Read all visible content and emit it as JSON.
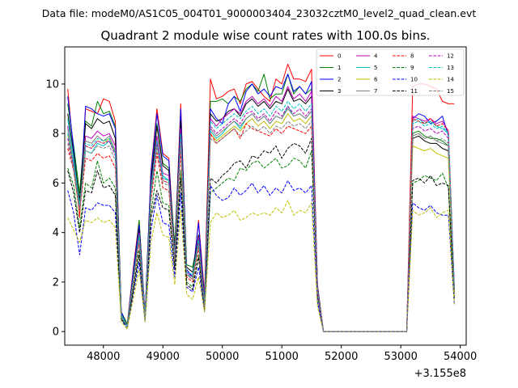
{
  "suptitle": "Data file: modeM0/AS1C05_004T01_9000003404_23032cztM0_level2_quad_clean.evt",
  "chart_data": {
    "type": "line",
    "title": "Quadrant 2 module wise count rates with 100.0s bins.",
    "xlabel": "",
    "ylabel": "",
    "x_offset_label": "+3.155e8",
    "xlim": [
      47350,
      54100
    ],
    "ylim": [
      -0.55,
      11.5
    ],
    "x_ticks": [
      48000,
      49000,
      50000,
      51000,
      52000,
      53000,
      54000
    ],
    "y_ticks": [
      0,
      2,
      4,
      6,
      8,
      10
    ],
    "legend_position": "top-right",
    "grid": false,
    "x": [
      47400,
      47500,
      47600,
      47700,
      47800,
      47900,
      48000,
      48100,
      48200,
      48300,
      48400,
      48500,
      48600,
      48700,
      48800,
      48900,
      49000,
      49100,
      49200,
      49300,
      49400,
      49500,
      49600,
      49700,
      49800,
      49900,
      50000,
      50100,
      50200,
      50300,
      50400,
      50500,
      50600,
      50700,
      50800,
      50900,
      51000,
      51100,
      51200,
      51300,
      51400,
      51500,
      51600,
      51700,
      51800,
      51900,
      52000,
      52100,
      52200,
      52300,
      52400,
      52500,
      52600,
      52700,
      52800,
      52900,
      53000,
      53100,
      53200,
      53300,
      53400,
      53500,
      53600,
      53700,
      53800,
      53900
    ],
    "series": [
      {
        "name": "0",
        "color": "#ff0000",
        "dash": "solid",
        "values": [
          9.8,
          7.2,
          4.6,
          9.0,
          8.9,
          8.8,
          9.4,
          9.3,
          8.5,
          0.8,
          0.3,
          2.5,
          4.5,
          0.7,
          6.5,
          9.0,
          7.2,
          7.0,
          3.2,
          9.2,
          2.5,
          2.2,
          4.5,
          1.5,
          10.2,
          9.4,
          9.5,
          9.7,
          9.8,
          9.2,
          10.0,
          10.1,
          9.8,
          9.5,
          9.3,
          10.2,
          10.0,
          10.8,
          10.2,
          10.2,
          10.1,
          10.6,
          1.9,
          0.0,
          0.0,
          0.0,
          0.0,
          0.0,
          0.0,
          0.0,
          0.0,
          0.0,
          0.0,
          0.0,
          0.0,
          0.0,
          0.0,
          0.0,
          9.9,
          10.0,
          10.0,
          9.9,
          9.8,
          9.3,
          9.2,
          9.2
        ]
      },
      {
        "name": "1",
        "color": "#008000",
        "dash": "solid",
        "values": [
          9.2,
          7.5,
          5.6,
          8.5,
          8.3,
          9.3,
          8.8,
          8.9,
          8.3,
          0.8,
          0.3,
          2.2,
          4.5,
          0.6,
          6.2,
          8.4,
          6.8,
          6.6,
          3.5,
          8.6,
          2.7,
          2.6,
          3.8,
          1.2,
          9.3,
          9.3,
          9.4,
          9.2,
          9.5,
          9.3,
          9.8,
          10.0,
          9.7,
          10.4,
          9.4,
          9.6,
          9.6,
          10.4,
          9.6,
          9.9,
          9.6,
          9.8,
          1.8,
          0.0,
          0.0,
          0.0,
          0.0,
          0.0,
          0.0,
          0.0,
          0.0,
          0.0,
          0.0,
          0.0,
          0.0,
          0.0,
          0.0,
          0.0,
          8.0,
          8.1,
          7.9,
          7.8,
          7.8,
          7.7,
          7.5,
          1.8
        ]
      },
      {
        "name": "2",
        "color": "#0000ff",
        "dash": "solid",
        "values": [
          9.5,
          7.4,
          5.0,
          9.1,
          9.0,
          8.8,
          8.7,
          8.8,
          8.2,
          0.8,
          0.2,
          2.4,
          4.3,
          0.7,
          6.4,
          8.8,
          7.1,
          6.9,
          3.0,
          9.0,
          2.5,
          2.2,
          4.4,
          1.3,
          9.0,
          8.6,
          8.4,
          9.2,
          9.5,
          8.9,
          9.7,
          10.0,
          9.6,
          9.8,
          9.5,
          9.9,
          9.8,
          10.4,
          9.7,
          9.9,
          9.6,
          10.1,
          1.8,
          0.0,
          0.0,
          0.0,
          0.0,
          0.0,
          0.0,
          0.0,
          0.0,
          0.0,
          0.0,
          0.0,
          0.0,
          0.0,
          0.0,
          0.0,
          8.6,
          8.8,
          8.7,
          8.4,
          8.5,
          8.7,
          7.9,
          1.8
        ]
      },
      {
        "name": "3",
        "color": "#000000",
        "dash": "solid",
        "values": [
          8.8,
          7.2,
          5.3,
          8.4,
          8.2,
          8.6,
          8.4,
          8.5,
          7.8,
          0.7,
          0.2,
          2.2,
          4.1,
          0.6,
          6.0,
          8.3,
          6.7,
          6.5,
          3.3,
          8.5,
          2.6,
          2.4,
          3.9,
          1.2,
          8.8,
          8.5,
          8.6,
          8.9,
          9.0,
          8.7,
          9.2,
          9.4,
          9.1,
          9.3,
          9.0,
          9.3,
          9.2,
          9.8,
          9.3,
          9.4,
          9.2,
          9.5,
          1.7,
          0.0,
          0.0,
          0.0,
          0.0,
          0.0,
          0.0,
          0.0,
          0.0,
          0.0,
          0.0,
          0.0,
          0.0,
          0.0,
          0.0,
          0.0,
          7.8,
          7.9,
          7.7,
          7.6,
          7.6,
          7.4,
          7.3,
          1.7
        ]
      },
      {
        "name": "4",
        "color": "#bf00bf",
        "dash": "solid",
        "values": [
          8.3,
          6.7,
          4.8,
          7.9,
          7.8,
          8.1,
          7.9,
          8.0,
          7.5,
          0.7,
          0.2,
          2.1,
          4.0,
          0.6,
          5.8,
          7.9,
          6.4,
          6.3,
          3.1,
          8.2,
          2.4,
          2.2,
          3.8,
          1.1,
          8.6,
          8.3,
          8.6,
          8.8,
          9.0,
          8.8,
          9.3,
          9.5,
          9.2,
          9.4,
          9.1,
          9.5,
          9.3,
          9.9,
          9.4,
          9.6,
          9.3,
          9.7,
          1.7,
          0.0,
          0.0,
          0.0,
          0.0,
          0.0,
          0.0,
          0.0,
          0.0,
          0.0,
          0.0,
          0.0,
          0.0,
          0.0,
          0.0,
          0.0,
          8.7,
          8.6,
          8.5,
          8.6,
          8.4,
          8.5,
          8.1,
          1.8
        ]
      },
      {
        "name": "5",
        "color": "#00bfbf",
        "dash": "solid",
        "values": [
          8.6,
          7.0,
          5.1,
          7.3,
          7.2,
          7.6,
          7.5,
          7.7,
          7.2,
          0.7,
          0.2,
          2.1,
          3.9,
          0.6,
          5.8,
          7.7,
          6.3,
          6.1,
          3.1,
          8.0,
          2.4,
          2.3,
          3.7,
          1.1,
          8.1,
          7.8,
          8.0,
          8.3,
          8.5,
          8.2,
          8.6,
          8.8,
          8.5,
          8.7,
          8.4,
          8.7,
          8.6,
          9.1,
          8.7,
          8.8,
          8.6,
          8.9,
          1.6,
          0.0,
          0.0,
          0.0,
          0.0,
          0.0,
          0.0,
          0.0,
          0.0,
          0.0,
          0.0,
          0.0,
          0.0,
          0.0,
          0.0,
          0.0,
          8.5,
          8.6,
          8.4,
          8.5,
          8.3,
          8.2,
          8.0,
          1.7
        ]
      },
      {
        "name": "6",
        "color": "#bfbf00",
        "dash": "solid",
        "values": [
          8.0,
          6.5,
          4.8,
          7.5,
          7.4,
          7.7,
          7.6,
          7.8,
          7.2,
          0.6,
          0.2,
          2.0,
          3.8,
          0.6,
          5.6,
          7.6,
          6.1,
          6.0,
          3.0,
          7.8,
          2.3,
          2.1,
          3.6,
          1.1,
          8.0,
          7.7,
          7.9,
          8.1,
          8.3,
          8.1,
          8.4,
          8.6,
          8.3,
          8.5,
          8.2,
          8.5,
          8.4,
          8.8,
          8.5,
          8.6,
          8.4,
          8.7,
          1.6,
          0.0,
          0.0,
          0.0,
          0.0,
          0.0,
          0.0,
          0.0,
          0.0,
          0.0,
          0.0,
          0.0,
          0.0,
          0.0,
          0.0,
          0.0,
          7.5,
          7.4,
          7.3,
          7.4,
          7.2,
          7.1,
          7.0,
          1.6
        ]
      },
      {
        "name": "7",
        "color": "#808080",
        "dash": "solid",
        "values": [
          8.2,
          6.8,
          5.0,
          7.7,
          7.6,
          7.9,
          7.7,
          7.9,
          7.3,
          0.6,
          0.2,
          2.1,
          3.9,
          0.6,
          5.7,
          7.7,
          6.2,
          6.1,
          3.0,
          7.9,
          2.3,
          2.2,
          3.7,
          1.1,
          8.2,
          7.9,
          8.1,
          8.3,
          8.5,
          8.3,
          8.6,
          8.8,
          8.5,
          8.7,
          8.4,
          8.7,
          8.6,
          9.0,
          8.7,
          8.8,
          8.6,
          8.9,
          1.6,
          0.0,
          0.0,
          0.0,
          0.0,
          0.0,
          0.0,
          0.0,
          0.0,
          0.0,
          0.0,
          0.0,
          0.0,
          0.0,
          0.0,
          0.0,
          7.9,
          8.0,
          7.8,
          7.9,
          7.7,
          7.6,
          7.5,
          1.7
        ]
      },
      {
        "name": "8",
        "color": "#ff0000",
        "dash": "dashed",
        "values": [
          7.4,
          6.5,
          4.8,
          7.0,
          6.9,
          7.2,
          7.0,
          7.1,
          6.6,
          0.6,
          0.2,
          1.9,
          3.6,
          0.5,
          5.3,
          7.2,
          5.8,
          5.7,
          2.8,
          7.3,
          2.2,
          2.0,
          3.4,
          1.0,
          8.0,
          7.6,
          7.8,
          8.0,
          8.2,
          7.8,
          8.4,
          8.2,
          8.1,
          8.0,
          7.9,
          8.2,
          8.0,
          8.3,
          8.2,
          8.1,
          8.0,
          8.3,
          1.5,
          0.0,
          0.0,
          0.0,
          0.0,
          0.0,
          0.0,
          0.0,
          0.0,
          0.0,
          0.0,
          0.0,
          0.0,
          0.0,
          0.0,
          0.0,
          8.6,
          8.5,
          8.4,
          8.6,
          8.3,
          8.4,
          8.1,
          1.6
        ]
      },
      {
        "name": "9",
        "color": "#008000",
        "dash": "dashed",
        "values": [
          6.6,
          5.9,
          4.2,
          6.0,
          5.8,
          6.9,
          6.0,
          6.2,
          5.8,
          0.5,
          0.2,
          1.7,
          3.3,
          0.5,
          4.8,
          6.5,
          5.2,
          5.1,
          2.6,
          6.5,
          2.0,
          1.8,
          3.1,
          0.9,
          5.6,
          5.8,
          6.0,
          6.2,
          6.1,
          6.6,
          6.5,
          6.8,
          6.9,
          6.6,
          6.8,
          7.0,
          6.6,
          6.7,
          7.0,
          6.9,
          6.6,
          7.3,
          1.4,
          0.0,
          0.0,
          0.0,
          0.0,
          0.0,
          0.0,
          0.0,
          0.0,
          0.0,
          0.0,
          0.0,
          0.0,
          0.0,
          0.0,
          0.0,
          6.0,
          6.1,
          6.3,
          6.2,
          6.1,
          6.4,
          5.8,
          1.3
        ]
      },
      {
        "name": "10",
        "color": "#0000ff",
        "dash": "dashed",
        "values": [
          5.7,
          4.8,
          3.1,
          5.0,
          4.9,
          5.2,
          5.1,
          5.1,
          4.8,
          0.5,
          0.1,
          1.5,
          2.8,
          0.4,
          4.1,
          5.5,
          4.4,
          4.3,
          2.2,
          5.6,
          1.8,
          1.6,
          2.6,
          0.8,
          5.9,
          5.5,
          5.3,
          5.4,
          5.8,
          5.5,
          5.7,
          6.0,
          5.6,
          5.9,
          5.5,
          5.8,
          5.6,
          6.1,
          5.7,
          5.8,
          5.6,
          5.9,
          1.2,
          0.0,
          0.0,
          0.0,
          0.0,
          0.0,
          0.0,
          0.0,
          0.0,
          0.0,
          0.0,
          0.0,
          0.0,
          0.0,
          0.0,
          0.0,
          5.2,
          5.0,
          4.9,
          5.1,
          4.8,
          4.7,
          4.7,
          1.1
        ]
      },
      {
        "name": "11",
        "color": "#000000",
        "dash": "dashed",
        "values": [
          6.5,
          5.6,
          4.0,
          5.7,
          5.6,
          6.5,
          5.8,
          5.9,
          5.5,
          0.5,
          0.2,
          1.6,
          3.1,
          0.5,
          4.6,
          5.7,
          5.0,
          4.9,
          2.5,
          6.2,
          1.9,
          1.7,
          3.0,
          0.9,
          6.2,
          6.0,
          6.3,
          6.5,
          6.8,
          6.9,
          6.6,
          7.1,
          7.0,
          7.3,
          7.2,
          7.5,
          7.0,
          7.4,
          7.6,
          7.5,
          7.2,
          7.8,
          1.5,
          0.0,
          0.0,
          0.0,
          0.0,
          0.0,
          0.0,
          0.0,
          0.0,
          0.0,
          0.0,
          0.0,
          0.0,
          0.0,
          0.0,
          0.0,
          6.1,
          6.2,
          6.0,
          6.3,
          5.9,
          6.0,
          5.9,
          1.3
        ]
      },
      {
        "name": "12",
        "color": "#bf00bf",
        "dash": "dashed",
        "values": [
          7.8,
          6.6,
          4.9,
          7.5,
          7.4,
          7.7,
          7.6,
          7.7,
          7.1,
          0.6,
          0.2,
          2.0,
          3.8,
          0.6,
          5.6,
          7.6,
          6.1,
          6.0,
          3.0,
          7.8,
          2.3,
          2.1,
          3.6,
          1.1,
          8.3,
          8.0,
          8.2,
          8.4,
          8.6,
          8.4,
          8.8,
          8.9,
          8.6,
          8.8,
          8.5,
          8.9,
          8.7,
          9.1,
          8.8,
          9.0,
          8.7,
          9.0,
          1.6,
          0.0,
          0.0,
          0.0,
          0.0,
          0.0,
          0.0,
          0.0,
          0.0,
          0.0,
          0.0,
          0.0,
          0.0,
          0.0,
          0.0,
          0.0,
          8.2,
          8.3,
          8.1,
          8.2,
          8.0,
          8.1,
          7.8,
          1.7
        ]
      },
      {
        "name": "13",
        "color": "#00bfbf",
        "dash": "dashed",
        "values": [
          8.0,
          6.8,
          5.1,
          7.6,
          7.5,
          7.8,
          7.7,
          7.8,
          7.2,
          0.6,
          0.2,
          2.1,
          3.9,
          0.6,
          5.7,
          7.7,
          6.2,
          6.1,
          3.0,
          7.9,
          2.3,
          2.2,
          3.7,
          1.1,
          8.5,
          8.2,
          8.4,
          8.6,
          8.8,
          8.6,
          8.9,
          9.1,
          8.8,
          9.0,
          8.7,
          9.1,
          8.9,
          9.3,
          9.0,
          9.2,
          8.9,
          9.2,
          1.7,
          0.0,
          0.0,
          0.0,
          0.0,
          0.0,
          0.0,
          0.0,
          0.0,
          0.0,
          0.0,
          0.0,
          0.0,
          0.0,
          0.0,
          0.0,
          8.4,
          8.5,
          8.3,
          8.4,
          8.2,
          8.3,
          8.0,
          1.7
        ]
      },
      {
        "name": "14",
        "color": "#bfbf00",
        "dash": "dashed",
        "values": [
          4.6,
          4.1,
          3.6,
          4.5,
          4.4,
          4.6,
          4.4,
          4.5,
          4.2,
          0.4,
          0.1,
          1.3,
          2.5,
          0.4,
          3.6,
          4.8,
          3.9,
          3.8,
          1.9,
          4.9,
          1.5,
          1.3,
          2.2,
          0.8,
          4.4,
          4.8,
          4.6,
          4.7,
          4.9,
          4.5,
          4.6,
          4.8,
          4.7,
          4.8,
          4.7,
          5.0,
          4.8,
          5.3,
          4.7,
          4.9,
          4.8,
          5.2,
          1.0,
          0.0,
          0.0,
          0.0,
          0.0,
          0.0,
          0.0,
          0.0,
          0.0,
          0.0,
          0.0,
          0.0,
          0.0,
          0.0,
          0.0,
          0.0,
          4.9,
          4.7,
          4.8,
          5.0,
          4.6,
          4.8,
          4.9,
          1.1
        ]
      },
      {
        "name": "15",
        "color": "#808080",
        "dash": "dashed",
        "values": [
          7.6,
          6.5,
          4.9,
          7.3,
          7.2,
          7.5,
          7.4,
          7.5,
          6.9,
          0.6,
          0.2,
          2.0,
          3.7,
          0.5,
          5.5,
          7.4,
          6.0,
          5.9,
          2.9,
          7.6,
          2.3,
          2.1,
          3.5,
          1.0,
          7.8,
          7.6,
          7.8,
          8.0,
          8.2,
          7.9,
          8.1,
          8.3,
          8.1,
          8.3,
          8.0,
          8.3,
          8.2,
          8.5,
          8.3,
          8.4,
          8.2,
          8.5,
          1.6,
          0.0,
          0.0,
          0.0,
          0.0,
          0.0,
          0.0,
          0.0,
          0.0,
          0.0,
          0.0,
          0.0,
          0.0,
          0.0,
          0.0,
          0.0,
          7.9,
          8.0,
          7.8,
          7.9,
          7.7,
          7.8,
          7.6,
          1.6
        ]
      }
    ]
  }
}
